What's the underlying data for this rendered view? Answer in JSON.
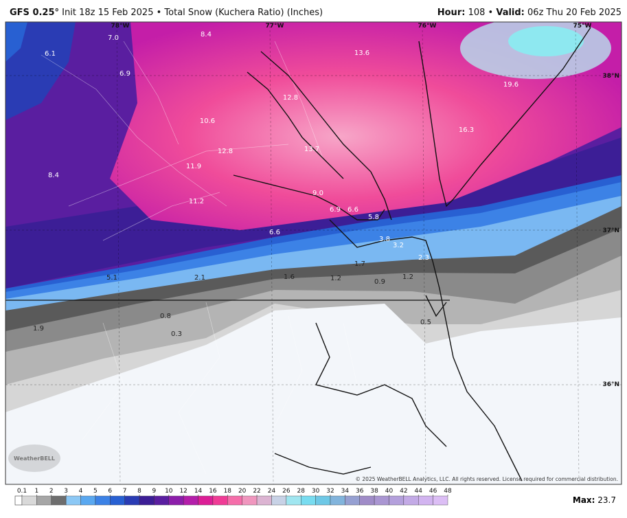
{
  "header": {
    "model": "GFS 0.25°",
    "title": "Init 18z 15 Feb 2025 • Total Snow (Kuchera Ratio) (Inches)",
    "hour_label": "Hour:",
    "hour": "108 •",
    "valid_label": "Valid:",
    "valid": "06z Thu 20 Feb 2025"
  },
  "longitudes": [
    "78°W",
    "77°W",
    "76°W",
    "75°W"
  ],
  "latitudes": [
    "38°N",
    "37°N",
    "36°N"
  ],
  "map_values": [
    "7.0",
    "8.4",
    "6.1",
    "6.9",
    "13.6",
    "12.8",
    "19.6",
    "10.6",
    "16.3",
    "12.8",
    "13.7",
    "11.9",
    "8.4",
    "9.0",
    "11.2",
    "6.9",
    "6.6",
    "5.8",
    "6.6",
    "3.8",
    "3.2",
    "2.3",
    "1.7",
    "5.1",
    "2.1",
    "1.6",
    "1.2",
    "0.9",
    "1.2",
    "0.8",
    "0.5",
    "1.9",
    "0.3"
  ],
  "logo": "WeatherBELL",
  "copyright": "© 2025 WeatherBELL Analytics, LLC. All rights reserved. License required for commercial distribution.",
  "colorbar": {
    "ticks": [
      0.1,
      1,
      2,
      3,
      4,
      5,
      6,
      7,
      8,
      9,
      10,
      12,
      14,
      16,
      18,
      20,
      22,
      24,
      26,
      28,
      30,
      32,
      34,
      36,
      38,
      40,
      42,
      44,
      46,
      48
    ],
    "colors": [
      "#d9d9d9",
      "#a6a6a6",
      "#6e6e6e",
      "#8cc8f5",
      "#5aa8f0",
      "#3c82e6",
      "#2860d2",
      "#2a3cb4",
      "#3c1e96",
      "#5a1ea0",
      "#8c1eaa",
      "#b41eaa",
      "#dc1e96",
      "#f03c96",
      "#f56eaa",
      "#f096be",
      "#dcb4d2",
      "#c8d2e6",
      "#a0e6f0",
      "#78dcf0",
      "#6ec8e6",
      "#82b4dc",
      "#96a0d2",
      "#a08cc8",
      "#aa96d2",
      "#b4a0dc",
      "#c3aae6",
      "#d2b4f0",
      "#dcbef5"
    ]
  },
  "max_label": "Max:",
  "max_value": 23.7
}
